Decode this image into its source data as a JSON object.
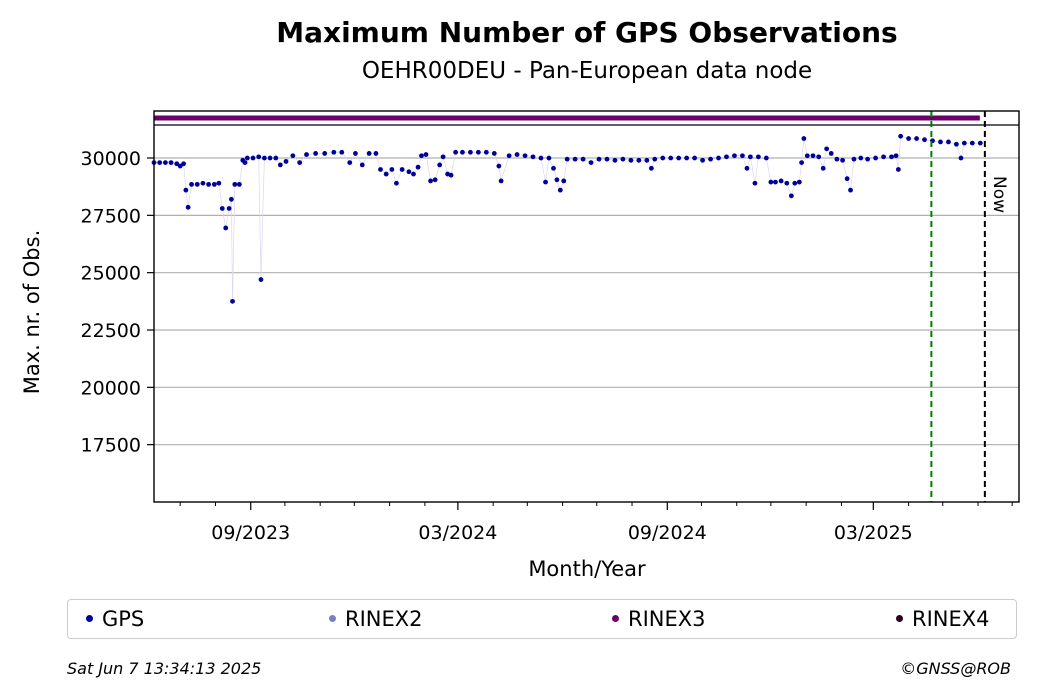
{
  "chart_data": {
    "type": "scatter",
    "title": "Maximum Number of GPS Observations",
    "subtitle": "OEHR00DEU - Pan-European data node",
    "xlabel": "Month/Year",
    "ylabel": "Max. nr. of Obs.",
    "x_tick_labels": [
      "09/2023",
      "03/2024",
      "09/2024",
      "03/2025"
    ],
    "x_tick_dates": [
      "2023-09-01",
      "2024-03-01",
      "2024-09-01",
      "2025-03-01"
    ],
    "x_minor_tick_dates": [
      "2023-07-01",
      "2023-08-01",
      "2023-10-01",
      "2023-11-01",
      "2023-12-01",
      "2024-01-01",
      "2024-02-01",
      "2024-04-01",
      "2024-05-01",
      "2024-06-01",
      "2024-07-01",
      "2024-08-01",
      "2024-10-01",
      "2024-11-01",
      "2024-12-01",
      "2025-01-01",
      "2025-02-01",
      "2025-04-01",
      "2025-05-01",
      "2025-06-01",
      "2025-07-01"
    ],
    "xlim": [
      "2023-06-08",
      "2025-07-07"
    ],
    "yticks": [
      17500,
      20000,
      22500,
      25000,
      27500,
      30000
    ],
    "ytick_labels": [
      "17500",
      "20000",
      "22500",
      "25000",
      "27500",
      "30000"
    ],
    "ylim": [
      15000,
      32050
    ],
    "grid": "y",
    "legend_placement": "bottom",
    "vlines": [
      {
        "date": "2025-04-21",
        "color": "#008000",
        "style": "dashed"
      },
      {
        "date": "2025-06-07",
        "color": "#000000",
        "style": "dashed",
        "label": "Now"
      }
    ],
    "series": [
      {
        "name": "GPS",
        "color": "#00009b",
        "points": [
          [
            "2023-06-08",
            29800
          ],
          [
            "2023-06-13",
            29800
          ],
          [
            "2023-06-18",
            29800
          ],
          [
            "2023-06-23",
            29800
          ],
          [
            "2023-06-28",
            29750
          ],
          [
            "2023-07-01",
            29650
          ],
          [
            "2023-07-04",
            29750
          ],
          [
            "2023-07-06",
            28600
          ],
          [
            "2023-07-08",
            27850
          ],
          [
            "2023-07-11",
            28850
          ],
          [
            "2023-07-16",
            28850
          ],
          [
            "2023-07-21",
            28900
          ],
          [
            "2023-07-26",
            28850
          ],
          [
            "2023-07-31",
            28850
          ],
          [
            "2023-08-04",
            28900
          ],
          [
            "2023-08-07",
            27800
          ],
          [
            "2023-08-10",
            26950
          ],
          [
            "2023-08-13",
            27800
          ],
          [
            "2023-08-15",
            28200
          ],
          [
            "2023-08-16",
            23750
          ],
          [
            "2023-08-18",
            28850
          ],
          [
            "2023-08-22",
            28850
          ],
          [
            "2023-08-25",
            29900
          ],
          [
            "2023-08-27",
            29800
          ],
          [
            "2023-08-29",
            30000
          ],
          [
            "2023-09-03",
            30000
          ],
          [
            "2023-09-08",
            30050
          ],
          [
            "2023-09-10",
            24700
          ],
          [
            "2023-09-13",
            30000
          ],
          [
            "2023-09-18",
            30000
          ],
          [
            "2023-09-23",
            30000
          ],
          [
            "2023-09-27",
            29700
          ],
          [
            "2023-10-02",
            29850
          ],
          [
            "2023-10-08",
            30100
          ],
          [
            "2023-10-14",
            29800
          ],
          [
            "2023-10-20",
            30150
          ],
          [
            "2023-10-28",
            30200
          ],
          [
            "2023-11-05",
            30200
          ],
          [
            "2023-11-13",
            30250
          ],
          [
            "2023-11-20",
            30250
          ],
          [
            "2023-11-27",
            29800
          ],
          [
            "2023-12-02",
            30200
          ],
          [
            "2023-12-08",
            29700
          ],
          [
            "2023-12-14",
            30200
          ],
          [
            "2023-12-20",
            30200
          ],
          [
            "2023-12-24",
            29500
          ],
          [
            "2023-12-29",
            29300
          ],
          [
            "2024-01-03",
            29500
          ],
          [
            "2024-01-07",
            28900
          ],
          [
            "2024-01-12",
            29500
          ],
          [
            "2024-01-18",
            29400
          ],
          [
            "2024-01-22",
            29300
          ],
          [
            "2024-01-26",
            29600
          ],
          [
            "2024-01-29",
            30100
          ],
          [
            "2024-02-02",
            30150
          ],
          [
            "2024-02-06",
            29000
          ],
          [
            "2024-02-10",
            29050
          ],
          [
            "2024-02-14",
            29700
          ],
          [
            "2024-02-17",
            30050
          ],
          [
            "2024-02-21",
            29300
          ],
          [
            "2024-02-24",
            29250
          ],
          [
            "2024-02-28",
            30250
          ],
          [
            "2024-03-05",
            30250
          ],
          [
            "2024-03-12",
            30250
          ],
          [
            "2024-03-19",
            30250
          ],
          [
            "2024-03-26",
            30250
          ],
          [
            "2024-04-02",
            30200
          ],
          [
            "2024-04-06",
            29650
          ],
          [
            "2024-04-08",
            29000
          ],
          [
            "2024-04-15",
            30100
          ],
          [
            "2024-04-22",
            30150
          ],
          [
            "2024-04-29",
            30100
          ],
          [
            "2024-05-06",
            30050
          ],
          [
            "2024-05-13",
            30000
          ],
          [
            "2024-05-17",
            28950
          ],
          [
            "2024-05-20",
            30000
          ],
          [
            "2024-05-24",
            29550
          ],
          [
            "2024-05-27",
            29050
          ],
          [
            "2024-05-30",
            28600
          ],
          [
            "2024-06-02",
            29000
          ],
          [
            "2024-06-05",
            29950
          ],
          [
            "2024-06-12",
            29950
          ],
          [
            "2024-06-19",
            29950
          ],
          [
            "2024-06-26",
            29800
          ],
          [
            "2024-07-03",
            29950
          ],
          [
            "2024-07-10",
            29950
          ],
          [
            "2024-07-17",
            29900
          ],
          [
            "2024-07-24",
            29950
          ],
          [
            "2024-07-31",
            29900
          ],
          [
            "2024-08-07",
            29900
          ],
          [
            "2024-08-14",
            29900
          ],
          [
            "2024-08-18",
            29550
          ],
          [
            "2024-08-21",
            29950
          ],
          [
            "2024-08-28",
            30000
          ],
          [
            "2024-09-04",
            30000
          ],
          [
            "2024-09-11",
            30000
          ],
          [
            "2024-09-18",
            30000
          ],
          [
            "2024-09-25",
            30000
          ],
          [
            "2024-10-02",
            29900
          ],
          [
            "2024-10-09",
            29950
          ],
          [
            "2024-10-16",
            30000
          ],
          [
            "2024-10-23",
            30050
          ],
          [
            "2024-10-30",
            30100
          ],
          [
            "2024-11-06",
            30100
          ],
          [
            "2024-11-10",
            29550
          ],
          [
            "2024-11-13",
            30050
          ],
          [
            "2024-11-17",
            28900
          ],
          [
            "2024-11-20",
            30050
          ],
          [
            "2024-11-27",
            30000
          ],
          [
            "2024-12-01",
            28950
          ],
          [
            "2024-12-05",
            28950
          ],
          [
            "2024-12-10",
            29000
          ],
          [
            "2024-12-15",
            28900
          ],
          [
            "2024-12-19",
            28350
          ],
          [
            "2024-12-22",
            28900
          ],
          [
            "2024-12-26",
            28950
          ],
          [
            "2024-12-28",
            29800
          ],
          [
            "2024-12-30",
            30850
          ],
          [
            "2025-01-02",
            30100
          ],
          [
            "2025-01-07",
            30100
          ],
          [
            "2025-01-12",
            30050
          ],
          [
            "2025-01-16",
            29550
          ],
          [
            "2025-01-19",
            30400
          ],
          [
            "2025-01-23",
            30200
          ],
          [
            "2025-01-28",
            29950
          ],
          [
            "2025-02-02",
            29900
          ],
          [
            "2025-02-06",
            29100
          ],
          [
            "2025-02-09",
            28600
          ],
          [
            "2025-02-12",
            29950
          ],
          [
            "2025-02-18",
            30000
          ],
          [
            "2025-02-24",
            29950
          ],
          [
            "2025-03-03",
            30000
          ],
          [
            "2025-03-10",
            30050
          ],
          [
            "2025-03-17",
            30050
          ],
          [
            "2025-03-21",
            30100
          ],
          [
            "2025-03-23",
            29500
          ],
          [
            "2025-03-25",
            30950
          ],
          [
            "2025-04-01",
            30850
          ],
          [
            "2025-04-08",
            30850
          ],
          [
            "2025-04-15",
            30800
          ],
          [
            "2025-04-22",
            30750
          ],
          [
            "2025-04-29",
            30700
          ],
          [
            "2025-05-06",
            30700
          ],
          [
            "2025-05-13",
            30600
          ],
          [
            "2025-05-17",
            30000
          ],
          [
            "2025-05-20",
            30650
          ],
          [
            "2025-05-27",
            30650
          ],
          [
            "2025-06-03",
            30650
          ]
        ]
      },
      {
        "name": "RINEX2",
        "color": "#7f7fbd",
        "points": []
      },
      {
        "name": "RINEX3",
        "color": "#6b006b",
        "y_level": 32050,
        "x_range": [
          "2023-06-08",
          "2025-06-07"
        ]
      },
      {
        "name": "RINEX4",
        "color": "#2b001b",
        "points": []
      }
    ]
  },
  "footer": {
    "timestamp": "Sat Jun  7 13:34:13 2025",
    "copyright": "©GNSS@ROB"
  }
}
